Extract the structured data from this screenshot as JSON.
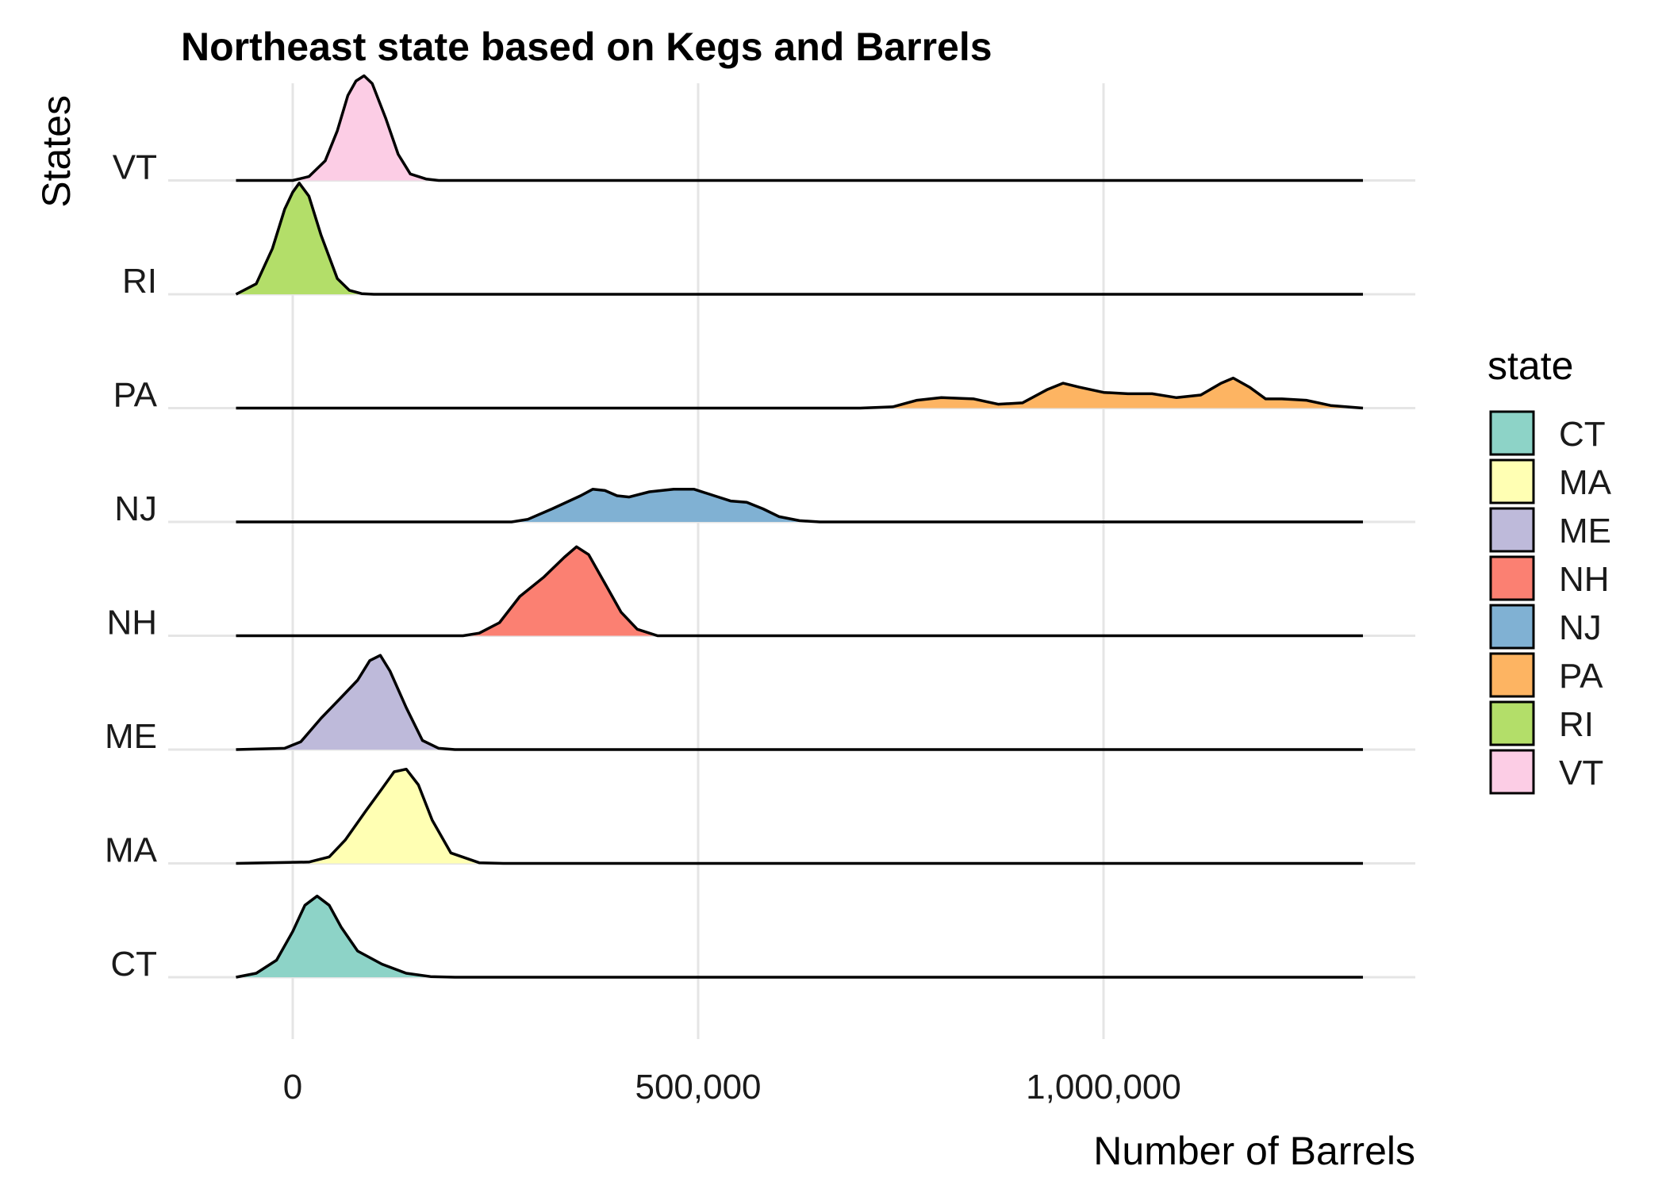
{
  "chart_data": {
    "type": "ridgeline",
    "title": "Northeast state based on Kegs and Barrels",
    "xlabel": "Number of Barrels",
    "ylabel": "States",
    "xlim": [
      -70000,
      1320000
    ],
    "x_ticks": [
      {
        "value": 0,
        "label": "0"
      },
      {
        "value": 500000,
        "label": "500,000"
      },
      {
        "value": 1000000,
        "label": "1,000,000"
      }
    ],
    "legend": {
      "title": "state",
      "position": "right"
    },
    "grid": true,
    "series": [
      {
        "name": "CT",
        "color": "#8DD3C7",
        "density": [
          [
            -70000,
            0
          ],
          [
            -45000,
            0.03
          ],
          [
            -20000,
            0.13
          ],
          [
            0,
            0.35
          ],
          [
            15000,
            0.55
          ],
          [
            30000,
            0.62
          ],
          [
            45000,
            0.55
          ],
          [
            60000,
            0.38
          ],
          [
            80000,
            0.2
          ],
          [
            110000,
            0.1
          ],
          [
            140000,
            0.03
          ],
          [
            170000,
            0.005
          ],
          [
            200000,
            0
          ],
          [
            1320000,
            0
          ]
        ]
      },
      {
        "name": "MA",
        "color": "#FFFFB3",
        "density": [
          [
            -70000,
            0
          ],
          [
            20000,
            0.01
          ],
          [
            45000,
            0.05
          ],
          [
            65000,
            0.18
          ],
          [
            90000,
            0.4
          ],
          [
            110000,
            0.57
          ],
          [
            125000,
            0.7
          ],
          [
            140000,
            0.72
          ],
          [
            155000,
            0.6
          ],
          [
            172000,
            0.33
          ],
          [
            195000,
            0.08
          ],
          [
            230000,
            0.005
          ],
          [
            260000,
            0
          ],
          [
            1320000,
            0
          ]
        ]
      },
      {
        "name": "ME",
        "color": "#BEBADA",
        "density": [
          [
            -70000,
            0
          ],
          [
            -10000,
            0.01
          ],
          [
            10000,
            0.06
          ],
          [
            35000,
            0.24
          ],
          [
            60000,
            0.4
          ],
          [
            80000,
            0.53
          ],
          [
            95000,
            0.68
          ],
          [
            108000,
            0.72
          ],
          [
            120000,
            0.6
          ],
          [
            140000,
            0.32
          ],
          [
            160000,
            0.07
          ],
          [
            180000,
            0.01
          ],
          [
            200000,
            0
          ],
          [
            1320000,
            0
          ]
        ]
      },
      {
        "name": "NH",
        "color": "#FB8072",
        "density": [
          [
            -70000,
            0
          ],
          [
            210000,
            0
          ],
          [
            230000,
            0.02
          ],
          [
            255000,
            0.1
          ],
          [
            280000,
            0.3
          ],
          [
            310000,
            0.45
          ],
          [
            335000,
            0.6
          ],
          [
            350000,
            0.68
          ],
          [
            365000,
            0.62
          ],
          [
            385000,
            0.4
          ],
          [
            405000,
            0.18
          ],
          [
            425000,
            0.05
          ],
          [
            450000,
            0
          ],
          [
            1320000,
            0
          ]
        ]
      },
      {
        "name": "NJ",
        "color": "#80B1D3",
        "density": [
          [
            -70000,
            0
          ],
          [
            270000,
            0
          ],
          [
            290000,
            0.02
          ],
          [
            320000,
            0.1
          ],
          [
            355000,
            0.2
          ],
          [
            370000,
            0.25
          ],
          [
            385000,
            0.24
          ],
          [
            400000,
            0.2
          ],
          [
            415000,
            0.19
          ],
          [
            440000,
            0.23
          ],
          [
            470000,
            0.25
          ],
          [
            495000,
            0.25
          ],
          [
            520000,
            0.2
          ],
          [
            540000,
            0.16
          ],
          [
            560000,
            0.15
          ],
          [
            580000,
            0.1
          ],
          [
            600000,
            0.04
          ],
          [
            625000,
            0.01
          ],
          [
            650000,
            0
          ],
          [
            1320000,
            0
          ]
        ]
      },
      {
        "name": "PA",
        "color": "#FDB462",
        "density": [
          [
            -70000,
            0
          ],
          [
            700000,
            0
          ],
          [
            740000,
            0.01
          ],
          [
            770000,
            0.06
          ],
          [
            800000,
            0.08
          ],
          [
            840000,
            0.07
          ],
          [
            870000,
            0.03
          ],
          [
            900000,
            0.04
          ],
          [
            930000,
            0.14
          ],
          [
            950000,
            0.19
          ],
          [
            970000,
            0.16
          ],
          [
            1000000,
            0.12
          ],
          [
            1030000,
            0.11
          ],
          [
            1060000,
            0.11
          ],
          [
            1090000,
            0.08
          ],
          [
            1120000,
            0.1
          ],
          [
            1145000,
            0.19
          ],
          [
            1160000,
            0.23
          ],
          [
            1180000,
            0.16
          ],
          [
            1200000,
            0.07
          ],
          [
            1220000,
            0.07
          ],
          [
            1250000,
            0.06
          ],
          [
            1280000,
            0.02
          ],
          [
            1320000,
            0
          ]
        ]
      },
      {
        "name": "RI",
        "color": "#B3DE69",
        "density": [
          [
            -70000,
            0
          ],
          [
            -45000,
            0.08
          ],
          [
            -25000,
            0.35
          ],
          [
            -10000,
            0.65
          ],
          [
            0,
            0.78
          ],
          [
            8000,
            0.85
          ],
          [
            20000,
            0.75
          ],
          [
            35000,
            0.45
          ],
          [
            55000,
            0.12
          ],
          [
            70000,
            0.03
          ],
          [
            85000,
            0.005
          ],
          [
            100000,
            0
          ],
          [
            1320000,
            0
          ]
        ]
      },
      {
        "name": "VT",
        "color": "#FCCDE5",
        "density": [
          [
            -70000,
            0
          ],
          [
            0,
            0
          ],
          [
            20000,
            0.03
          ],
          [
            40000,
            0.15
          ],
          [
            55000,
            0.38
          ],
          [
            68000,
            0.65
          ],
          [
            78000,
            0.76
          ],
          [
            88000,
            0.8
          ],
          [
            98000,
            0.74
          ],
          [
            115000,
            0.47
          ],
          [
            130000,
            0.2
          ],
          [
            145000,
            0.05
          ],
          [
            165000,
            0.01
          ],
          [
            180000,
            0
          ],
          [
            1320000,
            0
          ]
        ]
      }
    ]
  }
}
